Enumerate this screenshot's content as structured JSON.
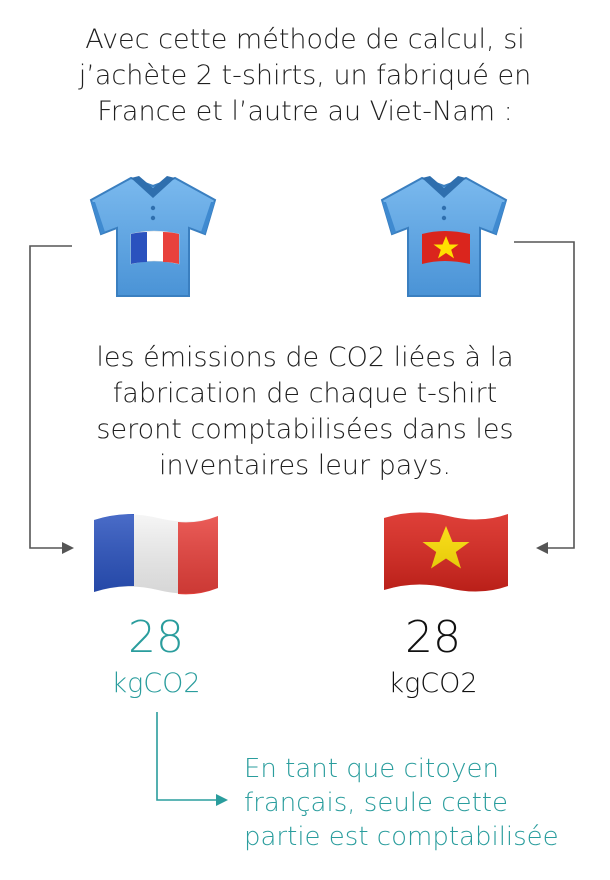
{
  "intro": {
    "lines": [
      "Avec cette méthode de calcul, si",
      "j’achète 2 t-shirts, un fabriqué en",
      "France et l’autre au Viet-Nam :"
    ]
  },
  "middle": {
    "lines": [
      "les émissions de CO2 liées à la",
      "fabrication de chaque t-shirt",
      "seront comptabilisées dans les",
      "inventaires leur pays."
    ]
  },
  "france": {
    "value": "28",
    "unit": "kgCO2"
  },
  "vietnam": {
    "value": "28",
    "unit": "kgCO2"
  },
  "note": {
    "lines": [
      "En tant que citoyen",
      "français, seule cette",
      "partie est comptabilisée"
    ]
  },
  "colors": {
    "accent_teal": "#2a9d9d",
    "text": "#202020",
    "shirt_blue": "#5aa5e3",
    "france_blue": "#2a52be",
    "france_red": "#e8413c",
    "vietnam_red": "#da251d",
    "vietnam_star": "#ffdf00",
    "connector_gray": "#555555"
  },
  "icons": [
    "tshirt-france-icon",
    "tshirt-vietnam-icon",
    "france-flag-icon",
    "vietnam-flag-icon"
  ]
}
